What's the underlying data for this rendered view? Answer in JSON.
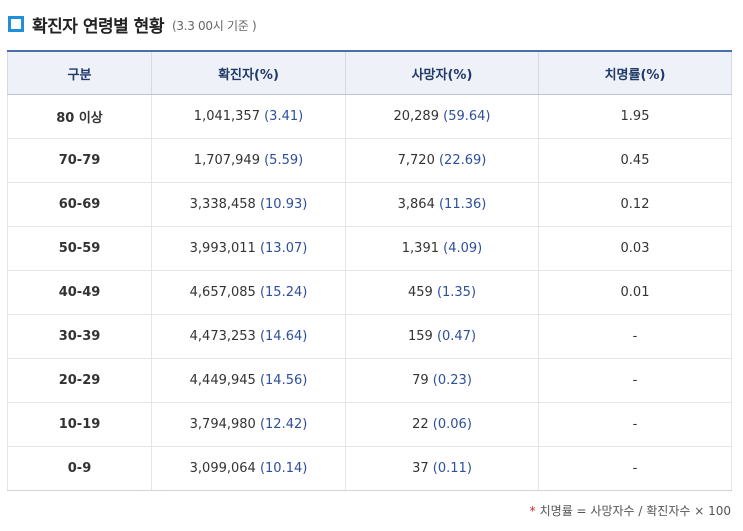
{
  "header": {
    "title": "확진자 연령별 현황",
    "subtitle": "(3.3 00시 기준 )"
  },
  "table": {
    "columns": [
      "구분",
      "확진자(%)",
      "사망자(%)",
      "치명률(%)"
    ],
    "rows": [
      {
        "group": "80 이상",
        "cases": "1,041,357",
        "cases_pct": "(3.41)",
        "deaths": "20,289",
        "deaths_pct": "(59.64)",
        "fatality": "1.95"
      },
      {
        "group": "70-79",
        "cases": "1,707,949",
        "cases_pct": "(5.59)",
        "deaths": "7,720",
        "deaths_pct": "(22.69)",
        "fatality": "0.45"
      },
      {
        "group": "60-69",
        "cases": "3,338,458",
        "cases_pct": "(10.93)",
        "deaths": "3,864",
        "deaths_pct": "(11.36)",
        "fatality": "0.12"
      },
      {
        "group": "50-59",
        "cases": "3,993,011",
        "cases_pct": "(13.07)",
        "deaths": "1,391",
        "deaths_pct": "(4.09)",
        "fatality": "0.03"
      },
      {
        "group": "40-49",
        "cases": "4,657,085",
        "cases_pct": "(15.24)",
        "deaths": "459",
        "deaths_pct": "(1.35)",
        "fatality": "0.01"
      },
      {
        "group": "30-39",
        "cases": "4,473,253",
        "cases_pct": "(14.64)",
        "deaths": "159",
        "deaths_pct": "(0.47)",
        "fatality": "-"
      },
      {
        "group": "20-29",
        "cases": "4,449,945",
        "cases_pct": "(14.56)",
        "deaths": "79",
        "deaths_pct": "(0.23)",
        "fatality": "-"
      },
      {
        "group": "10-19",
        "cases": "3,794,980",
        "cases_pct": "(12.42)",
        "deaths": "22",
        "deaths_pct": "(0.06)",
        "fatality": "-"
      },
      {
        "group": "0-9",
        "cases": "3,099,064",
        "cases_pct": "(10.14)",
        "deaths": "37",
        "deaths_pct": "(0.11)",
        "fatality": "-"
      }
    ]
  },
  "footnote": {
    "marker": "*",
    "text": "치명률 = 사망자수 / 확진자수 × 100"
  },
  "colors": {
    "accent": "#1f8fd8",
    "header_text": "#1f3a68",
    "value_blue": "#2e4f9a",
    "star_red": "#d9232e"
  },
  "icons": {
    "title_marker": "square-bullet-icon"
  }
}
